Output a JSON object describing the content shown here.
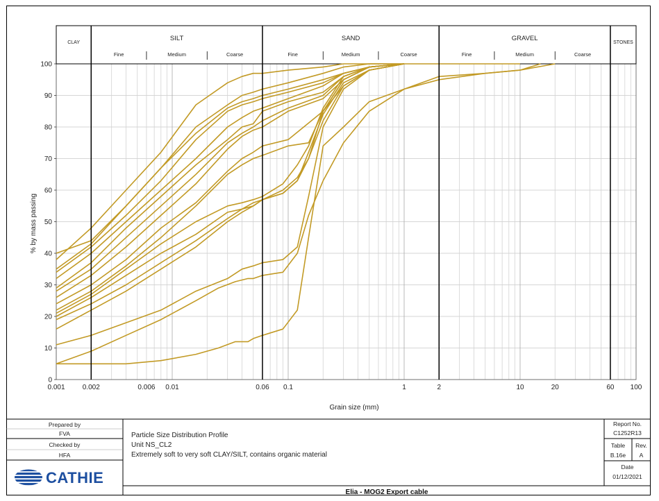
{
  "chart_data": {
    "type": "line",
    "xscale": "log",
    "xlim": [
      0.001,
      100
    ],
    "ylim": [
      0,
      100
    ],
    "xlabel": "Grain size (mm)",
    "ylabel": "% by mass passing",
    "grid": true,
    "line_color": "#c29a25",
    "x_ticks": [
      {
        "v": 0.001,
        "label": "0.001"
      },
      {
        "v": 0.002,
        "label": "0.002"
      },
      {
        "v": 0.006,
        "label": "0.006"
      },
      {
        "v": 0.01,
        "label": "0.01"
      },
      {
        "v": 0.06,
        "label": "0.06"
      },
      {
        "v": 0.1,
        "label": "0.1"
      },
      {
        "v": 1,
        "label": "1"
      },
      {
        "v": 2,
        "label": "2"
      },
      {
        "v": 10,
        "label": "10"
      },
      {
        "v": 20,
        "label": "20"
      },
      {
        "v": 60,
        "label": "60"
      },
      {
        "v": 100,
        "label": "100"
      }
    ],
    "y_ticks": [
      0,
      10,
      20,
      30,
      40,
      50,
      60,
      70,
      80,
      90,
      100
    ],
    "boundaries": [
      0.002,
      0.06,
      2,
      60
    ],
    "classes": [
      {
        "name": "CLAY",
        "from": 0.001,
        "to": 0.002
      },
      {
        "name": "SILT",
        "from": 0.002,
        "to": 0.06
      },
      {
        "name": "SAND",
        "from": 0.06,
        "to": 2
      },
      {
        "name": "GRAVEL",
        "from": 2,
        "to": 60
      },
      {
        "name": "STONES",
        "from": 60,
        "to": 100
      }
    ],
    "subclasses": [
      {
        "name": "Fine",
        "from": 0.002,
        "to": 0.006
      },
      {
        "name": "Medium",
        "from": 0.006,
        "to": 0.02
      },
      {
        "name": "Coarse",
        "from": 0.02,
        "to": 0.06
      },
      {
        "name": "Fine",
        "from": 0.06,
        "to": 0.2
      },
      {
        "name": "Medium",
        "from": 0.2,
        "to": 0.6
      },
      {
        "name": "Coarse",
        "from": 0.6,
        "to": 2
      },
      {
        "name": "Fine",
        "from": 2,
        "to": 6
      },
      {
        "name": "Medium",
        "from": 6,
        "to": 20
      },
      {
        "name": "Coarse",
        "from": 20,
        "to": 60
      }
    ],
    "series": [
      {
        "x": [
          0.001,
          0.002,
          0.004,
          0.008,
          0.016,
          0.03,
          0.04,
          0.05,
          0.06,
          0.1,
          0.2,
          0.3,
          0.5,
          1,
          2,
          5,
          10
        ],
        "y": [
          40,
          44,
          55,
          67,
          80,
          87,
          90,
          91,
          92,
          94,
          97,
          99,
          100,
          100,
          100,
          100,
          100
        ]
      },
      {
        "x": [
          0.001,
          0.002,
          0.004,
          0.008,
          0.016,
          0.03,
          0.04,
          0.05,
          0.06,
          0.1,
          0.2,
          0.3,
          0.5,
          1
        ],
        "y": [
          38,
          48,
          60,
          72,
          87,
          94,
          96,
          97,
          97,
          98,
          99,
          100,
          100,
          100
        ]
      },
      {
        "x": [
          0.001,
          0.002,
          0.004,
          0.008,
          0.016,
          0.03,
          0.04,
          0.05,
          0.06,
          0.1,
          0.2,
          0.3,
          0.5,
          1
        ],
        "y": [
          35,
          43,
          55,
          67,
          78,
          86,
          88,
          89,
          90,
          92,
          95,
          97,
          99,
          100
        ]
      },
      {
        "x": [
          0.001,
          0.002,
          0.004,
          0.008,
          0.016,
          0.03,
          0.04,
          0.05,
          0.06,
          0.1,
          0.2,
          0.3,
          0.5,
          1
        ],
        "y": [
          34,
          42,
          52,
          63,
          76,
          85,
          87,
          88,
          89,
          91,
          94,
          97,
          99,
          100
        ]
      },
      {
        "x": [
          0.001,
          0.002,
          0.004,
          0.008,
          0.016,
          0.03,
          0.04,
          0.05,
          0.06,
          0.1,
          0.2,
          0.3,
          0.5,
          1
        ],
        "y": [
          32,
          40,
          50,
          60,
          70,
          80,
          83,
          85,
          86,
          89,
          93,
          97,
          99,
          100
        ]
      },
      {
        "x": [
          0.001,
          0.002,
          0.004,
          0.008,
          0.016,
          0.03,
          0.04,
          0.05,
          0.06,
          0.1,
          0.2,
          0.3,
          0.5,
          1
        ],
        "y": [
          29,
          37,
          48,
          58,
          68,
          76,
          80,
          81,
          85,
          88,
          91,
          96,
          99,
          100
        ]
      },
      {
        "x": [
          0.001,
          0.002,
          0.004,
          0.008,
          0.016,
          0.03,
          0.04,
          0.05,
          0.06,
          0.1,
          0.2,
          0.3,
          0.5,
          1
        ],
        "y": [
          28,
          35,
          45,
          55,
          65,
          75,
          78,
          80,
          82,
          86,
          90,
          96,
          99,
          100
        ]
      },
      {
        "x": [
          0.001,
          0.002,
          0.004,
          0.008,
          0.016,
          0.03,
          0.04,
          0.05,
          0.06,
          0.1,
          0.2,
          0.3,
          0.5,
          1
        ],
        "y": [
          26,
          33,
          42,
          52,
          62,
          73,
          77,
          79,
          80,
          85,
          89,
          95,
          99,
          100
        ]
      },
      {
        "x": [
          0.001,
          0.002,
          0.004,
          0.008,
          0.016,
          0.03,
          0.04,
          0.05,
          0.06,
          0.1,
          0.2,
          0.3,
          0.5,
          1
        ],
        "y": [
          24,
          30,
          38,
          48,
          56,
          66,
          70,
          72,
          74,
          76,
          85,
          93,
          98,
          100
        ]
      },
      {
        "x": [
          0.001,
          0.002,
          0.004,
          0.008,
          0.016,
          0.03,
          0.04,
          0.05,
          0.06,
          0.1,
          0.15,
          0.2,
          0.3,
          0.5,
          1
        ],
        "y": [
          22,
          28,
          36,
          45,
          55,
          65,
          68,
          70,
          71,
          74,
          75,
          85,
          95,
          99,
          100
        ]
      },
      {
        "x": [
          0.001,
          0.002,
          0.004,
          0.008,
          0.016,
          0.03,
          0.04,
          0.05,
          0.06,
          0.09,
          0.12,
          0.15,
          0.2,
          0.3,
          0.5,
          1
        ],
        "y": [
          21,
          27,
          35,
          43,
          50,
          55,
          56,
          57,
          58,
          62,
          68,
          74,
          86,
          96,
          99,
          100
        ]
      },
      {
        "x": [
          0.001,
          0.002,
          0.004,
          0.008,
          0.016,
          0.03,
          0.04,
          0.05,
          0.06,
          0.09,
          0.12,
          0.15,
          0.2,
          0.3,
          0.5,
          1
        ],
        "y": [
          20,
          26,
          33,
          40,
          46,
          53,
          54,
          55,
          57,
          60,
          64,
          70,
          85,
          95,
          99,
          100
        ]
      },
      {
        "x": [
          0.001,
          0.002,
          0.004,
          0.008,
          0.016,
          0.03,
          0.04,
          0.05,
          0.06,
          0.09,
          0.12,
          0.15,
          0.2,
          0.3,
          0.5,
          1
        ],
        "y": [
          19,
          24,
          30,
          37,
          44,
          51,
          54,
          56,
          57,
          59,
          63,
          72,
          84,
          94,
          98,
          100
        ]
      },
      {
        "x": [
          0.001,
          0.002,
          0.004,
          0.008,
          0.016,
          0.03,
          0.04,
          0.05,
          0.06,
          0.09,
          0.12,
          0.15,
          0.2,
          0.3,
          0.5,
          1
        ],
        "y": [
          16,
          22,
          28,
          35,
          42,
          50,
          53,
          55,
          57,
          59,
          63,
          70,
          82,
          93,
          98,
          100
        ]
      },
      {
        "x": [
          0.001,
          0.002,
          0.004,
          0.008,
          0.016,
          0.03,
          0.04,
          0.05,
          0.06,
          0.09,
          0.12,
          0.15,
          0.2,
          0.3,
          0.5,
          1
        ],
        "y": [
          11,
          14,
          18,
          22,
          28,
          32,
          35,
          36,
          37,
          38,
          42,
          58,
          80,
          92,
          98,
          100
        ]
      },
      {
        "x": [
          0.001,
          0.002,
          0.004,
          0.008,
          0.016,
          0.025,
          0.035,
          0.045,
          0.05,
          0.06,
          0.09,
          0.12,
          0.15,
          0.2,
          0.3,
          0.5,
          1,
          2,
          5,
          10,
          20
        ],
        "y": [
          5,
          9,
          14,
          19,
          25,
          29,
          31,
          32,
          32,
          33,
          34,
          40,
          52,
          63,
          75,
          85,
          92,
          96,
          97,
          98,
          100
        ]
      },
      {
        "x": [
          0.001,
          0.002,
          0.004,
          0.008,
          0.016,
          0.025,
          0.035,
          0.045,
          0.05,
          0.06,
          0.09,
          0.12,
          0.15,
          0.2,
          0.3,
          0.5,
          1,
          2,
          5,
          10,
          15
        ],
        "y": [
          5,
          5,
          5,
          6,
          8,
          10,
          12,
          12,
          13,
          14,
          16,
          22,
          45,
          74,
          80,
          88,
          92,
          95,
          97,
          98,
          100
        ]
      }
    ]
  },
  "footer": {
    "prepared_label": "Prepared by",
    "prepared_value": "FVA",
    "checked_label": "Checked by",
    "checked_value": "HFA",
    "logo_text": "CATHIE",
    "info_line1": "Particle Size Distribution Profile",
    "info_line2": "Unit NS_CL2",
    "info_line3": "Extremely soft to very soft CLAY/SILT, contains organic material",
    "project_title": "Elia - MOG2 Export cable",
    "report_label": "Report No.",
    "report_value": "C1252R13",
    "table_label": "Table",
    "table_value": "B.16e",
    "rev_label": "Rev.",
    "rev_value": "A",
    "date_label": "Date",
    "date_value": "01/12/2021"
  }
}
